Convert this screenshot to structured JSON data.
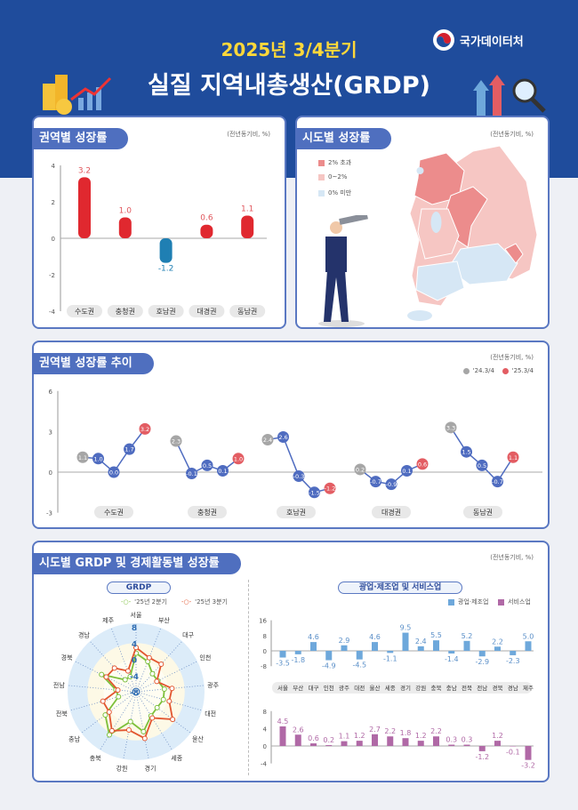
{
  "header": {
    "title_line1": "2025년 3/4분기",
    "title_line2": "실질 지역내총생산(GRDP)",
    "logo_text": "국가데이터처"
  },
  "colors": {
    "band": "#1f4c9c",
    "accent_yellow": "#ffd83a",
    "positive": "#e0282f",
    "negative": "#1f7fb3",
    "q2": "#7cbf3a",
    "q3": "#e2552f",
    "mining": "#6ea8db",
    "service": "#b069a6",
    "prev": "#a6a6a6",
    "curr": "#e35d63",
    "mid": "#4f6cc0"
  },
  "unit": "(전년동기비, %)",
  "chart_data": [
    {
      "type": "bar",
      "title": "권역별 성장률",
      "categories": [
        "수도권",
        "충청권",
        "호남권",
        "대경권",
        "동남권"
      ],
      "values": [
        3.2,
        1.0,
        -1.2,
        0.6,
        1.1
      ],
      "labels": [
        "3.2",
        "1.0",
        "-1.2",
        "0.6",
        "1.1"
      ],
      "ylim": [
        -4,
        4
      ],
      "yticks": [
        "4",
        "2",
        "0",
        "-2",
        "-4"
      ]
    },
    {
      "type": "map",
      "title": "시도별 성장률",
      "legend": [
        "2% 초과",
        "0~2%",
        "0% 미만"
      ],
      "legend_colors": [
        "#ec8c8c",
        "#f6c6c3",
        "#d6e7f5"
      ]
    },
    {
      "type": "line",
      "title": "권역별 성장률 추이",
      "legend": [
        "'24.3/4",
        "'25.3/4"
      ],
      "categories": [
        "수도권",
        "충청권",
        "호남권",
        "대경권",
        "동남권"
      ],
      "series": [
        [
          1.1,
          1.0,
          0.0,
          1.7,
          3.2
        ],
        [
          2.3,
          -0.1,
          0.5,
          0.1,
          1.0
        ],
        [
          2.4,
          2.6,
          -0.3,
          -1.5,
          -1.2
        ],
        [
          0.2,
          -0.7,
          -0.9,
          0.1,
          0.6
        ],
        [
          3.3,
          1.5,
          0.5,
          -0.7,
          1.1
        ]
      ],
      "point_labels": [
        [
          "1.1",
          "1.0",
          "0.0",
          "1.7",
          "3.2"
        ],
        [
          "2.3",
          "-0.1",
          "0.5",
          "0.1",
          "1.0"
        ],
        [
          "2.4",
          "2.6",
          "-0.3",
          "-1.5",
          "-1.2"
        ],
        [
          "0.2",
          "-0.7",
          "-0.9",
          "0.1",
          "0.6"
        ],
        [
          "3.3",
          "1.5",
          "0.5",
          "-0.7",
          "1.1"
        ]
      ],
      "ylim": [
        -3,
        6
      ],
      "yticks": [
        "6",
        "3",
        "0",
        "-3"
      ]
    },
    {
      "type": "radar",
      "title": "GRDP",
      "section_title": "시도별 GRDP 및 경제활동별 성장률",
      "axes": [
        "서울",
        "부산",
        "대구",
        "인천",
        "광주",
        "대전",
        "울산",
        "세종",
        "경기",
        "강원",
        "충북",
        "충남",
        "전북",
        "전남",
        "경북",
        "경남",
        "제주"
      ],
      "rticks": [
        "8",
        "4",
        "0",
        "-4",
        "-8"
      ],
      "rlim": [
        -8,
        8
      ],
      "series": [
        {
          "name": "'25년 2분기",
          "values": [
            1.5,
            0,
            -2,
            -2,
            -1,
            -1,
            -1.5,
            -1,
            2,
            -0.5,
            4.5,
            1.5,
            -3.5,
            -3,
            1.5,
            -4,
            -4
          ]
        },
        {
          "name": "'25년 3분기",
          "values": [
            2.9,
            1.0,
            1.2,
            -2.3,
            0.9,
            0.5,
            3.3,
            -0.4,
            3.7,
            1.6,
            3.3,
            0.3,
            0.5,
            -3.5,
            0.2,
            -0.1,
            -2.5
          ]
        }
      ]
    },
    {
      "type": "bar",
      "title": "광업·제조업 및 서비스업",
      "categories": [
        "서울",
        "부산",
        "대구",
        "인천",
        "광주",
        "대전",
        "울산",
        "세종",
        "경기",
        "강원",
        "충북",
        "충남",
        "전북",
        "전남",
        "경북",
        "경남",
        "제주"
      ],
      "series": [
        {
          "name": "광업·제조업",
          "values": [
            -3.5,
            -1.8,
            4.6,
            -4.9,
            2.9,
            -4.5,
            4.6,
            -1.1,
            9.5,
            2.4,
            5.5,
            -1.4,
            5.2,
            -2.9,
            2.2,
            -2.3,
            5.0
          ],
          "labels": [
            "-3.5",
            "-1.8",
            "4.6",
            "-4.9",
            "2.9",
            "-4.5",
            "4.6",
            "-1.1",
            "9.5",
            "2.4",
            "5.5",
            "-1.4",
            "5.2",
            "-2.9",
            "2.2",
            "-2.3",
            "5.0"
          ],
          "ylim": [
            -8,
            16
          ],
          "yticks": [
            "16",
            "8",
            "0",
            "-8"
          ]
        },
        {
          "name": "서비스업",
          "values": [
            4.5,
            2.6,
            0.6,
            0.2,
            1.1,
            1.2,
            2.7,
            2.2,
            1.8,
            1.2,
            2.2,
            0.3,
            0.3,
            -1.2,
            1.2,
            -0.1,
            -3.2
          ],
          "labels": [
            "4.5",
            "2.6",
            "0.6",
            "0.2",
            "1.1",
            "1.2",
            "2.7",
            "2.2",
            "1.8",
            "1.2",
            "2.2",
            "0.3",
            "0.3",
            "-1.2",
            "1.2",
            "-0.1",
            "-3.2"
          ],
          "ylim": [
            -4,
            8
          ],
          "yticks": [
            "8",
            "4",
            "0",
            "-4"
          ]
        }
      ]
    }
  ]
}
